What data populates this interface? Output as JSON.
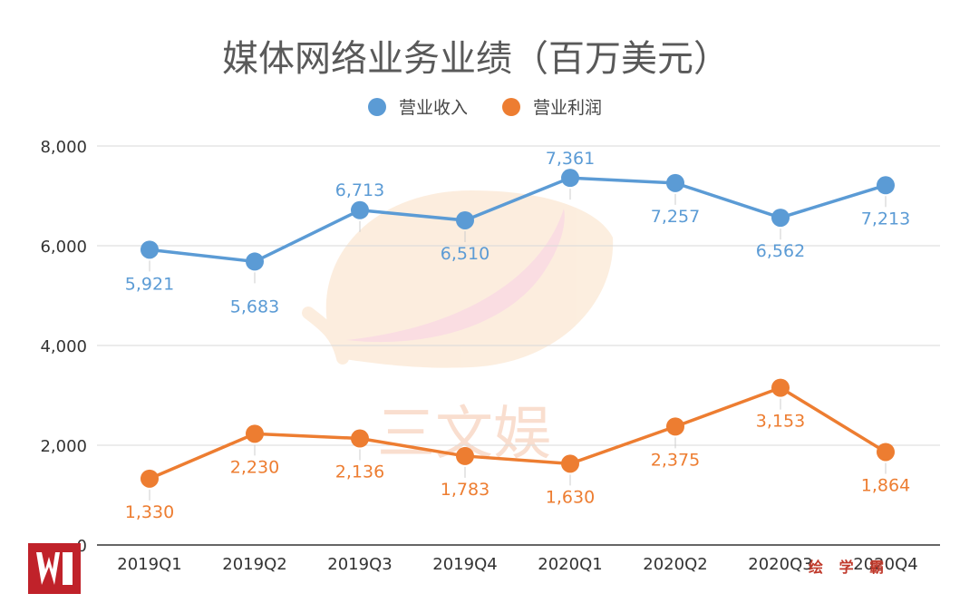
{
  "chart_data": {
    "type": "line",
    "title": "媒体网络业务业绩（百万美元）",
    "categories": [
      "2019Q1",
      "2019Q2",
      "2019Q3",
      "2019Q4",
      "2020Q1",
      "2020Q2",
      "2020Q3",
      "2020Q4"
    ],
    "series": [
      {
        "name": "营业收入",
        "color": "#5b9bd5",
        "values": [
          5921,
          5683,
          6713,
          6510,
          7361,
          7257,
          6562,
          7213
        ],
        "labels": [
          "5,921",
          "5,683",
          "6,713",
          "6,510",
          "7,361",
          "7,257",
          "6,562",
          "7,213"
        ]
      },
      {
        "name": "营业利润",
        "color": "#ed7d31",
        "values": [
          1330,
          2230,
          2136,
          1783,
          1630,
          2375,
          3153,
          1864
        ],
        "labels": [
          "1,330",
          "2,230",
          "2,136",
          "1,783",
          "1,630",
          "2,375",
          "3,153",
          "1,864"
        ]
      }
    ],
    "yticks": [
      "0",
      "2,000",
      "4,000",
      "6,000",
      "8,000"
    ],
    "ytick_values": [
      0,
      2000,
      4000,
      6000,
      8000
    ],
    "ylim": [
      0,
      8000
    ],
    "xlabel": "",
    "ylabel": "",
    "legend": "top-center",
    "grid": true
  },
  "watermark": {
    "text": "三文娱"
  },
  "corner_brand": {
    "text": "绘 学 霸"
  },
  "colors": {
    "accent_revenue": "#5b9bd5",
    "accent_profit": "#ed7d31",
    "logo": "#c0222a",
    "grid": "#d9d9d9",
    "axis": "#333333"
  }
}
